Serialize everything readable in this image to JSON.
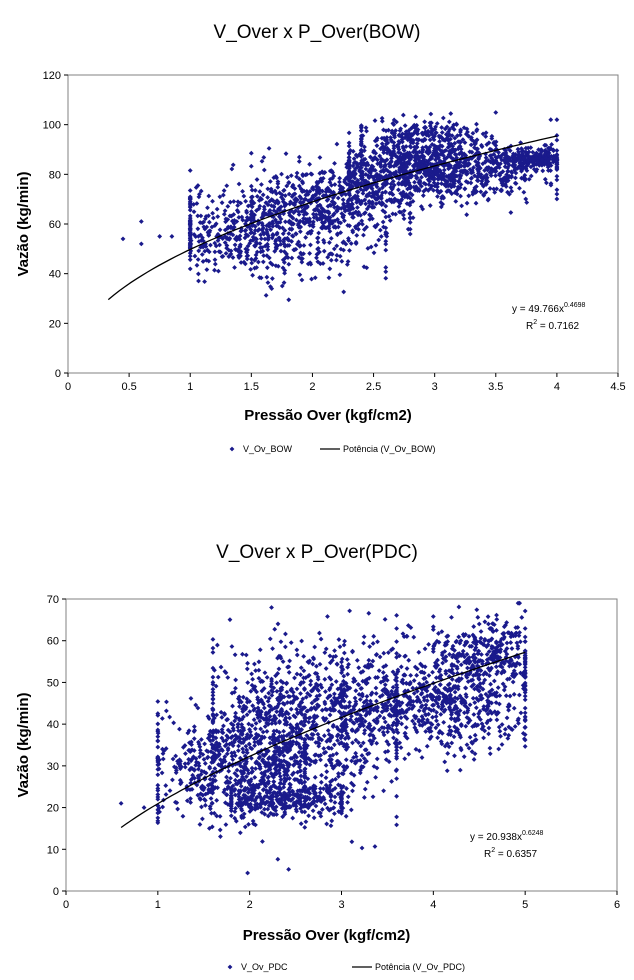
{
  "chart_data": [
    {
      "type": "scatter",
      "title": "V_Over x P_Over(BOW)",
      "xlabel": "Pressão Over (kgf/cm2)",
      "ylabel": "Vazão (kg/min)",
      "xlim": [
        0,
        4.5
      ],
      "ylim": [
        0,
        120
      ],
      "xticks": [
        0,
        0.5,
        1,
        1.5,
        2,
        2.5,
        3,
        3.5,
        4,
        4.5
      ],
      "xtick_labels": [
        "0",
        "0.5",
        "1",
        "1.5",
        "2",
        "2.5",
        "3",
        "3.5",
        "4",
        "4.5"
      ],
      "yticks": [
        0,
        20,
        40,
        60,
        80,
        100,
        120
      ],
      "ytick_labels": [
        "0",
        "20",
        "40",
        "60",
        "80",
        "100",
        "120"
      ],
      "series": [
        {
          "name": "V_Ov_BOW",
          "color": "#1a1a8c",
          "marker": "diamond",
          "clusters": [
            {
              "x_range": [
                1.0,
                2.6
              ],
              "center": [
                1.6,
                57
              ],
              "spread": [
                0.45,
                9
              ],
              "n": 650
            },
            {
              "x_range": [
                1.5,
                2.8
              ],
              "center": [
                2.2,
                70
              ],
              "spread": [
                0.35,
                7
              ],
              "n": 450
            },
            {
              "x_range": [
                2.3,
                4.0
              ],
              "center": [
                3.0,
                82
              ],
              "spread": [
                0.45,
                6
              ],
              "n": 1000
            },
            {
              "x_range": [
                2.4,
                3.5
              ],
              "center": [
                2.9,
                95
              ],
              "spread": [
                0.3,
                4
              ],
              "n": 220
            },
            {
              "x_range": [
                3.5,
                4.0
              ],
              "center": [
                3.8,
                86
              ],
              "spread": [
                0.15,
                2
              ],
              "n": 200
            }
          ],
          "outliers": [
            [
              0.45,
              54
            ],
            [
              0.6,
              52
            ],
            [
              0.6,
              61
            ],
            [
              0.75,
              55
            ],
            [
              0.85,
              55
            ],
            [
              3.95,
              102
            ],
            [
              4.0,
              102
            ]
          ]
        },
        {
          "name": "Potência (V_Ov_BOW)",
          "color": "#000000",
          "type": "power_fit",
          "a": 49.766,
          "b": 0.4698,
          "x_range": [
            0.33,
            4.0
          ]
        }
      ],
      "annotation": {
        "equation_prefix": "y = 49.766x",
        "equation_exp": "0.4698",
        "r2_label": "R",
        "r2_exp": "2",
        "r2_value": " = 0.7162"
      },
      "legend": [
        "V_Ov_BOW",
        "Potência (V_Ov_BOW)"
      ],
      "legend_position": "bottom",
      "grid": false
    },
    {
      "type": "scatter",
      "title": "V_Over x P_Over(PDC)",
      "xlabel": "Pressão Over (kgf/cm2)",
      "ylabel": "Vazão (kg/min)",
      "xlim": [
        0,
        6
      ],
      "ylim": [
        0,
        70
      ],
      "xticks": [
        0,
        1,
        2,
        3,
        4,
        5,
        6
      ],
      "xtick_labels": [
        "0",
        "1",
        "2",
        "3",
        "4",
        "5",
        "6"
      ],
      "yticks": [
        0,
        10,
        20,
        30,
        40,
        50,
        60,
        70
      ],
      "ytick_labels": [
        "0",
        "10",
        "20",
        "30",
        "40",
        "50",
        "60",
        "70"
      ],
      "series": [
        {
          "name": "V_Ov_PDC",
          "color": "#1a1a8c",
          "marker": "diamond",
          "clusters": [
            {
              "x_range": [
                1.0,
                2.6
              ],
              "center": [
                1.8,
                30
              ],
              "spread": [
                0.5,
                7
              ],
              "n": 600
            },
            {
              "x_range": [
                1.6,
                3.6
              ],
              "center": [
                2.6,
                40
              ],
              "spread": [
                0.55,
                10
              ],
              "n": 1000
            },
            {
              "x_range": [
                1.8,
                3.0
              ],
              "center": [
                2.4,
                22
              ],
              "spread": [
                0.4,
                2
              ],
              "n": 300
            },
            {
              "x_range": [
                3.0,
                5.0
              ],
              "center": [
                4.0,
                45
              ],
              "spread": [
                0.55,
                6
              ],
              "n": 700
            },
            {
              "x_range": [
                4.0,
                5.0
              ],
              "center": [
                4.6,
                57
              ],
              "spread": [
                0.3,
                4
              ],
              "n": 300
            }
          ],
          "outliers": [
            [
              0.6,
              21
            ],
            [
              0.85,
              20
            ],
            [
              4.5,
              64
            ],
            [
              4.6,
              64
            ]
          ]
        },
        {
          "name": "Potência (V_Ov_PDC)",
          "color": "#000000",
          "type": "power_fit",
          "a": 20.938,
          "b": 0.6248,
          "x_range": [
            0.6,
            5.0
          ]
        }
      ],
      "annotation": {
        "equation_prefix": "y = 20.938x",
        "equation_exp": "0.6248",
        "r2_label": "R",
        "r2_exp": "2",
        "r2_value": " = 0.6357"
      },
      "legend": [
        "V_Ov_PDC",
        "Potência (V_Ov_PDC)"
      ],
      "legend_position": "bottom",
      "grid": false
    }
  ]
}
